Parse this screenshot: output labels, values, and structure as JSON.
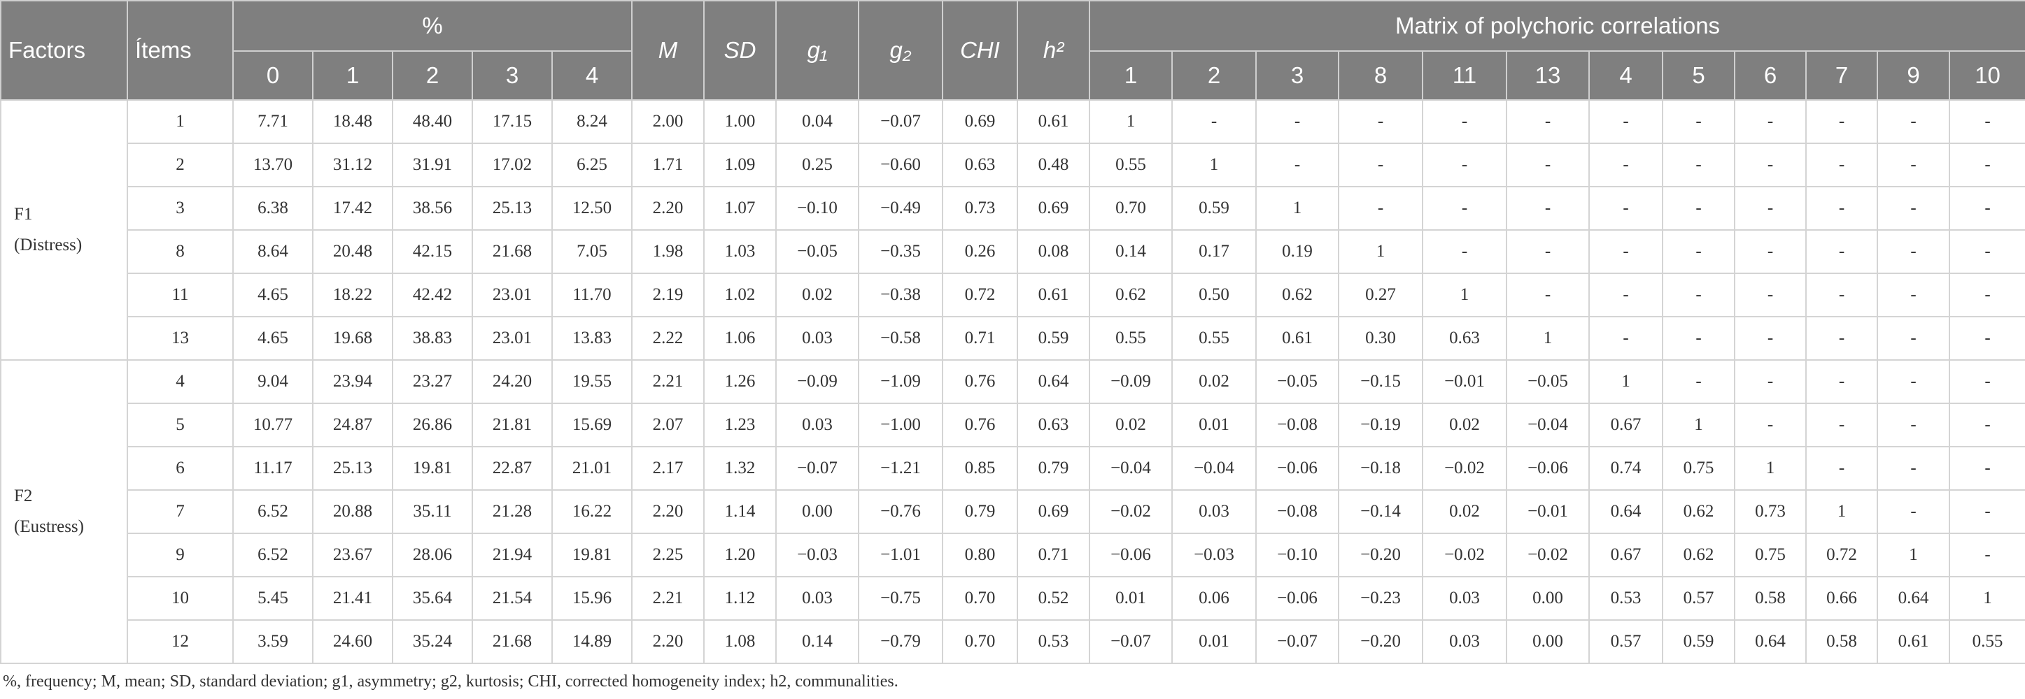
{
  "table": {
    "header": {
      "factors": "Factors",
      "items": "Ítems",
      "percent": "%",
      "percent_cols": [
        "0",
        "1",
        "2",
        "3",
        "4"
      ],
      "stats": [
        "M",
        "SD",
        "g₁",
        "g₂",
        "CHI",
        "h²"
      ],
      "matrix": "Matrix of polychoric correlations",
      "matrix_cols": [
        "1",
        "2",
        "3",
        "8",
        "11",
        "13",
        "4",
        "5",
        "6",
        "7",
        "9",
        "10"
      ]
    },
    "groups": [
      {
        "label": "F1",
        "sublabel": "(Distress)",
        "rows": [
          [
            "1",
            "7.71",
            "18.48",
            "48.40",
            "17.15",
            "8.24",
            "2.00",
            "1.00",
            "0.04",
            "−0.07",
            "0.69",
            "0.61",
            "1",
            "-",
            "-",
            "-",
            "-",
            "-",
            "-",
            "-",
            "-",
            "-",
            "-",
            "-"
          ],
          [
            "2",
            "13.70",
            "31.12",
            "31.91",
            "17.02",
            "6.25",
            "1.71",
            "1.09",
            "0.25",
            "−0.60",
            "0.63",
            "0.48",
            "0.55",
            "1",
            "-",
            "-",
            "-",
            "-",
            "-",
            "-",
            "-",
            "-",
            "-",
            "-"
          ],
          [
            "3",
            "6.38",
            "17.42",
            "38.56",
            "25.13",
            "12.50",
            "2.20",
            "1.07",
            "−0.10",
            "−0.49",
            "0.73",
            "0.69",
            "0.70",
            "0.59",
            "1",
            "-",
            "-",
            "-",
            "-",
            "-",
            "-",
            "-",
            "-",
            "-"
          ],
          [
            "8",
            "8.64",
            "20.48",
            "42.15",
            "21.68",
            "7.05",
            "1.98",
            "1.03",
            "−0.05",
            "−0.35",
            "0.26",
            "0.08",
            "0.14",
            "0.17",
            "0.19",
            "1",
            "-",
            "-",
            "-",
            "-",
            "-",
            "-",
            "-",
            "-"
          ],
          [
            "11",
            "4.65",
            "18.22",
            "42.42",
            "23.01",
            "11.70",
            "2.19",
            "1.02",
            "0.02",
            "−0.38",
            "0.72",
            "0.61",
            "0.62",
            "0.50",
            "0.62",
            "0.27",
            "1",
            "-",
            "-",
            "-",
            "-",
            "-",
            "-",
            "-"
          ],
          [
            "13",
            "4.65",
            "19.68",
            "38.83",
            "23.01",
            "13.83",
            "2.22",
            "1.06",
            "0.03",
            "−0.58",
            "0.71",
            "0.59",
            "0.55",
            "0.55",
            "0.61",
            "0.30",
            "0.63",
            "1",
            "-",
            "-",
            "-",
            "-",
            "-",
            "-"
          ]
        ]
      },
      {
        "label": "F2",
        "sublabel": "(Eustress)",
        "rows": [
          [
            "4",
            "9.04",
            "23.94",
            "23.27",
            "24.20",
            "19.55",
            "2.21",
            "1.26",
            "−0.09",
            "−1.09",
            "0.76",
            "0.64",
            "−0.09",
            "0.02",
            "−0.05",
            "−0.15",
            "−0.01",
            "−0.05",
            "1",
            "-",
            "-",
            "-",
            "-",
            "-"
          ],
          [
            "5",
            "10.77",
            "24.87",
            "26.86",
            "21.81",
            "15.69",
            "2.07",
            "1.23",
            "0.03",
            "−1.00",
            "0.76",
            "0.63",
            "0.02",
            "0.01",
            "−0.08",
            "−0.19",
            "0.02",
            "−0.04",
            "0.67",
            "1",
            "-",
            "-",
            "-",
            "-"
          ],
          [
            "6",
            "11.17",
            "25.13",
            "19.81",
            "22.87",
            "21.01",
            "2.17",
            "1.32",
            "−0.07",
            "−1.21",
            "0.85",
            "0.79",
            "−0.04",
            "−0.04",
            "−0.06",
            "−0.18",
            "−0.02",
            "−0.06",
            "0.74",
            "0.75",
            "1",
            "-",
            "-",
            "-"
          ],
          [
            "7",
            "6.52",
            "20.88",
            "35.11",
            "21.28",
            "16.22",
            "2.20",
            "1.14",
            "0.00",
            "−0.76",
            "0.79",
            "0.69",
            "−0.02",
            "0.03",
            "−0.08",
            "−0.14",
            "0.02",
            "−0.01",
            "0.64",
            "0.62",
            "0.73",
            "1",
            "-",
            "-"
          ],
          [
            "9",
            "6.52",
            "23.67",
            "28.06",
            "21.94",
            "19.81",
            "2.25",
            "1.20",
            "−0.03",
            "−1.01",
            "0.80",
            "0.71",
            "−0.06",
            "−0.03",
            "−0.10",
            "−0.20",
            "−0.02",
            "−0.02",
            "0.67",
            "0.62",
            "0.75",
            "0.72",
            "1",
            "-"
          ],
          [
            "10",
            "5.45",
            "21.41",
            "35.64",
            "21.54",
            "15.96",
            "2.21",
            "1.12",
            "0.03",
            "−0.75",
            "0.70",
            "0.52",
            "0.01",
            "0.06",
            "−0.06",
            "−0.23",
            "0.03",
            "0.00",
            "0.53",
            "0.57",
            "0.58",
            "0.66",
            "0.64",
            "1"
          ],
          [
            "12",
            "3.59",
            "24.60",
            "35.24",
            "21.68",
            "14.89",
            "2.20",
            "1.08",
            "0.14",
            "−0.79",
            "0.70",
            "0.53",
            "−0.07",
            "0.01",
            "−0.07",
            "−0.20",
            "0.03",
            "0.00",
            "0.57",
            "0.59",
            "0.64",
            "0.58",
            "0.61",
            "0.55"
          ]
        ]
      }
    ],
    "footnote": "%, frequency; M, mean; SD, standard deviation; g1, asymmetry; g2, kurtosis; CHI, corrected homogeneity index; h2, communalities."
  }
}
